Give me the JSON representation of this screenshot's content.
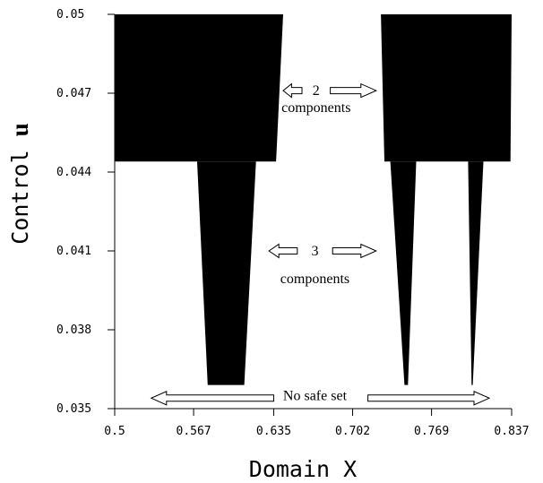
{
  "chart_data": {
    "type": "area",
    "xlabel": "Domain X",
    "ylabel_prefix": "Control ",
    "ylabel_symbol": "u",
    "xlim": [
      0.5,
      0.837
    ],
    "ylim": [
      0.035,
      0.05
    ],
    "x_ticks": [
      "0.5",
      "0.567",
      "0.635",
      "0.702",
      "0.769",
      "0.837"
    ],
    "y_ticks": [
      "0.035",
      "0.038",
      "0.041",
      "0.044",
      "0.047",
      "0.05"
    ],
    "grid": false,
    "fill_color": "#000000",
    "regions": [
      {
        "points": [
          [
            0.5,
            0.05
          ],
          [
            0.643,
            0.05
          ],
          [
            0.637,
            0.0444
          ],
          [
            0.5,
            0.0444
          ]
        ]
      },
      {
        "points": [
          [
            0.57,
            0.0444
          ],
          [
            0.62,
            0.0444
          ],
          [
            0.61,
            0.0359
          ],
          [
            0.579,
            0.0359
          ]
        ]
      },
      {
        "points": [
          [
            0.726,
            0.05
          ],
          [
            0.837,
            0.05
          ],
          [
            0.836,
            0.0444
          ],
          [
            0.729,
            0.0444
          ]
        ]
      },
      {
        "points": [
          [
            0.734,
            0.0444
          ],
          [
            0.756,
            0.0444
          ],
          [
            0.749,
            0.0359
          ],
          [
            0.746,
            0.0359
          ]
        ]
      },
      {
        "points": [
          [
            0.8,
            0.0444
          ],
          [
            0.813,
            0.0444
          ],
          [
            0.804,
            0.0359
          ],
          [
            0.803,
            0.0359
          ]
        ]
      }
    ],
    "annotations": [
      {
        "lines": [
          "2",
          "components"
        ],
        "line_y": [
          0.0471,
          0.04645
        ],
        "text_x": 0.671,
        "arrows": [
          {
            "tail": 0.659,
            "head": 0.643,
            "y": 0.0471
          },
          {
            "tail": 0.683,
            "head": 0.722,
            "y": 0.0471
          }
        ]
      },
      {
        "lines": [
          "3",
          "components"
        ],
        "line_y": [
          0.041,
          0.03995
        ],
        "text_x": 0.67,
        "arrows": [
          {
            "tail": 0.655,
            "head": 0.631,
            "y": 0.041
          },
          {
            "tail": 0.685,
            "head": 0.722,
            "y": 0.041
          }
        ]
      },
      {
        "lines": [
          "No safe set"
        ],
        "line_y": [
          0.0355
        ],
        "text_x": 0.67,
        "arrows": [
          {
            "tail": 0.635,
            "head": 0.531,
            "y": 0.0354
          },
          {
            "tail": 0.715,
            "head": 0.818,
            "y": 0.0354
          }
        ]
      }
    ]
  }
}
